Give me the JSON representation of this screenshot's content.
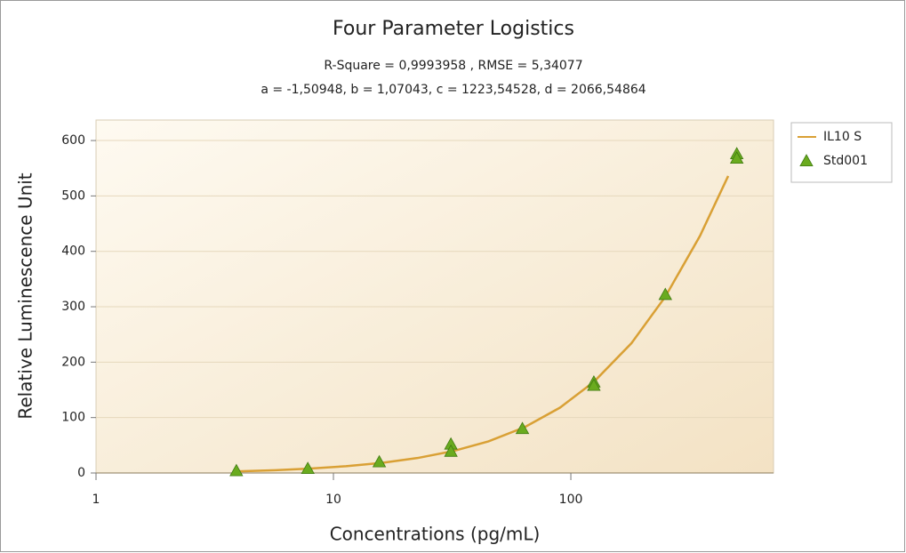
{
  "chart_data": {
    "type": "scatter",
    "title": "Four Parameter Logistics",
    "subtitle": "R-Square = 0,9993958 , RMSE = 5,34077",
    "subtitle2": "a = -1,50948, b = 1,07043, c = 1223,54528, d = 2066,54864",
    "xlabel": "Concentrations (pg/mL)",
    "ylabel": "Relative Luminescence Unit",
    "xscale": "log",
    "xlim": [
      1,
      714
    ],
    "ylim": [
      0,
      637
    ],
    "xticks": [
      1,
      10,
      100
    ],
    "yticks": [
      0,
      100,
      200,
      300,
      400,
      500,
      600
    ],
    "grid": true,
    "legend": "right",
    "series": [
      {
        "name": "IL10 S",
        "type": "line",
        "color": "#d9a035",
        "x": [
          4,
          5.7,
          8,
          11.3,
          16,
          22.6,
          32,
          45,
          64,
          90,
          125,
          180,
          250,
          350,
          460
        ],
        "values": [
          3.0,
          5.1,
          8.0,
          12.2,
          18.3,
          27.0,
          39.6,
          57.1,
          82.8,
          117.9,
          164.4,
          234.2,
          318.2,
          428.0,
          536.0
        ]
      },
      {
        "name": "Std001",
        "type": "scatter",
        "color": "#6aab1f",
        "x": [
          3.9,
          7.8,
          15.6,
          31.25,
          31.25,
          62.5,
          125,
          125,
          250,
          500,
          500
        ],
        "values": [
          4,
          8,
          20,
          52,
          39,
          80,
          164,
          158,
          322,
          576,
          568
        ]
      }
    ]
  }
}
